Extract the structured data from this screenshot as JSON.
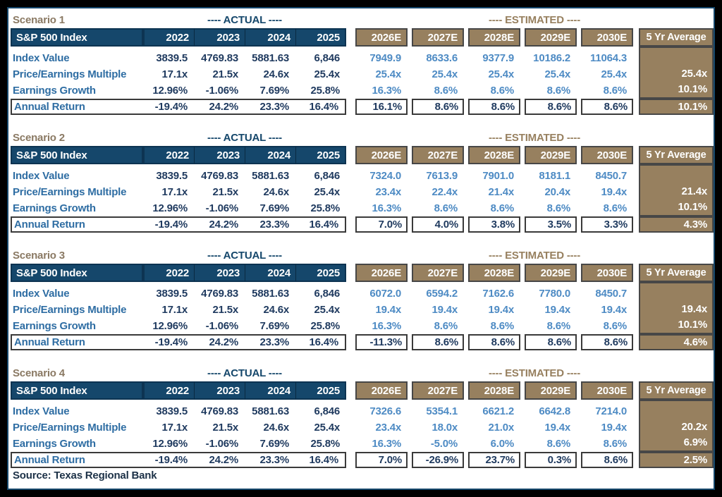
{
  "source": "Source: Texas Regional Bank",
  "colors": {
    "navy_header": "#15476B",
    "brown_header": "#97805F",
    "scenario_title": "#8A7963",
    "row_label_blue": "#2E6DA3",
    "actual_value_navy": "#1F3A5F",
    "estimated_value_blue": "#4E8BC4",
    "frame_black": "#000000"
  },
  "labels": {
    "actual_tag": "---- ACTUAL ----",
    "estimated_tag": "---- ESTIMATED ----",
    "sp_header": "S&P 500 Index",
    "avg_header": "5 Yr Average",
    "row_labels": [
      "Index Value",
      "Price/Earnings Multiple",
      "Earnings Growth",
      "Annual Return"
    ],
    "actual_years": [
      "2022",
      "2023",
      "2024",
      "2025"
    ],
    "estimated_years": [
      "2026E",
      "2027E",
      "2028E",
      "2029E",
      "2030E"
    ]
  },
  "scenarios": [
    {
      "title": "Scenario 1",
      "actual": {
        "index_value": [
          "3839.5",
          "4769.83",
          "5881.63",
          "6,846"
        ],
        "pe": [
          "17.1x",
          "21.5x",
          "24.6x",
          "25.4x"
        ],
        "eg": [
          "12.96%",
          "-1.06%",
          "7.69%",
          "25.8%"
        ],
        "ar": [
          "-19.4%",
          "24.2%",
          "23.3%",
          "16.4%"
        ]
      },
      "estimated": {
        "index_value": [
          "7949.9",
          "8633.6",
          "9377.9",
          "10186.2",
          "11064.3"
        ],
        "pe": [
          "25.4x",
          "25.4x",
          "25.4x",
          "25.4x",
          "25.4x"
        ],
        "eg": [
          "16.3%",
          "8.6%",
          "8.6%",
          "8.6%",
          "8.6%"
        ],
        "ar": [
          "16.1%",
          "8.6%",
          "8.6%",
          "8.6%",
          "8.6%"
        ]
      },
      "avg": {
        "pe": "25.4x",
        "eg": "10.1%",
        "ar": "10.1%"
      }
    },
    {
      "title": "Scenario 2",
      "actual": {
        "index_value": [
          "3839.5",
          "4769.83",
          "5881.63",
          "6,846"
        ],
        "pe": [
          "17.1x",
          "21.5x",
          "24.6x",
          "25.4x"
        ],
        "eg": [
          "12.96%",
          "-1.06%",
          "7.69%",
          "25.8%"
        ],
        "ar": [
          "-19.4%",
          "24.2%",
          "23.3%",
          "16.4%"
        ]
      },
      "estimated": {
        "index_value": [
          "7324.0",
          "7613.9",
          "7901.0",
          "8181.1",
          "8450.7"
        ],
        "pe": [
          "23.4x",
          "22.4x",
          "21.4x",
          "20.4x",
          "19.4x"
        ],
        "eg": [
          "16.3%",
          "8.6%",
          "8.6%",
          "8.6%",
          "8.6%"
        ],
        "ar": [
          "7.0%",
          "4.0%",
          "3.8%",
          "3.5%",
          "3.3%"
        ]
      },
      "avg": {
        "pe": "21.4x",
        "eg": "10.1%",
        "ar": "4.3%"
      }
    },
    {
      "title": "Scenario 3",
      "actual": {
        "index_value": [
          "3839.5",
          "4769.83",
          "5881.63",
          "6,846"
        ],
        "pe": [
          "17.1x",
          "21.5x",
          "24.6x",
          "25.4x"
        ],
        "eg": [
          "12.96%",
          "-1.06%",
          "7.69%",
          "25.8%"
        ],
        "ar": [
          "-19.4%",
          "24.2%",
          "23.3%",
          "16.4%"
        ]
      },
      "estimated": {
        "index_value": [
          "6072.0",
          "6594.2",
          "7162.6",
          "7780.0",
          "8450.7"
        ],
        "pe": [
          "19.4x",
          "19.4x",
          "19.4x",
          "19.4x",
          "19.4x"
        ],
        "eg": [
          "16.3%",
          "8.6%",
          "8.6%",
          "8.6%",
          "8.6%"
        ],
        "ar": [
          "-11.3%",
          "8.6%",
          "8.6%",
          "8.6%",
          "8.6%"
        ]
      },
      "avg": {
        "pe": "19.4x",
        "eg": "10.1%",
        "ar": "4.6%"
      }
    },
    {
      "title": "Scenario 4",
      "actual": {
        "index_value": [
          "3839.5",
          "4769.83",
          "5881.63",
          "6,846"
        ],
        "pe": [
          "17.1x",
          "21.5x",
          "24.6x",
          "25.4x"
        ],
        "eg": [
          "12.96%",
          "-1.06%",
          "7.69%",
          "25.8%"
        ],
        "ar": [
          "-19.4%",
          "24.2%",
          "23.3%",
          "16.4%"
        ]
      },
      "estimated": {
        "index_value": [
          "7326.6",
          "5354.1",
          "6621.2",
          "6642.8",
          "7214.0"
        ],
        "pe": [
          "23.4x",
          "18.0x",
          "21.0x",
          "19.4x",
          "19.4x"
        ],
        "eg": [
          "16.3%",
          "-5.0%",
          "6.0%",
          "8.6%",
          "8.6%"
        ],
        "ar": [
          "7.0%",
          "-26.9%",
          "23.7%",
          "0.3%",
          "8.6%"
        ]
      },
      "avg": {
        "pe": "20.2x",
        "eg": "6.9%",
        "ar": "2.5%"
      }
    }
  ]
}
